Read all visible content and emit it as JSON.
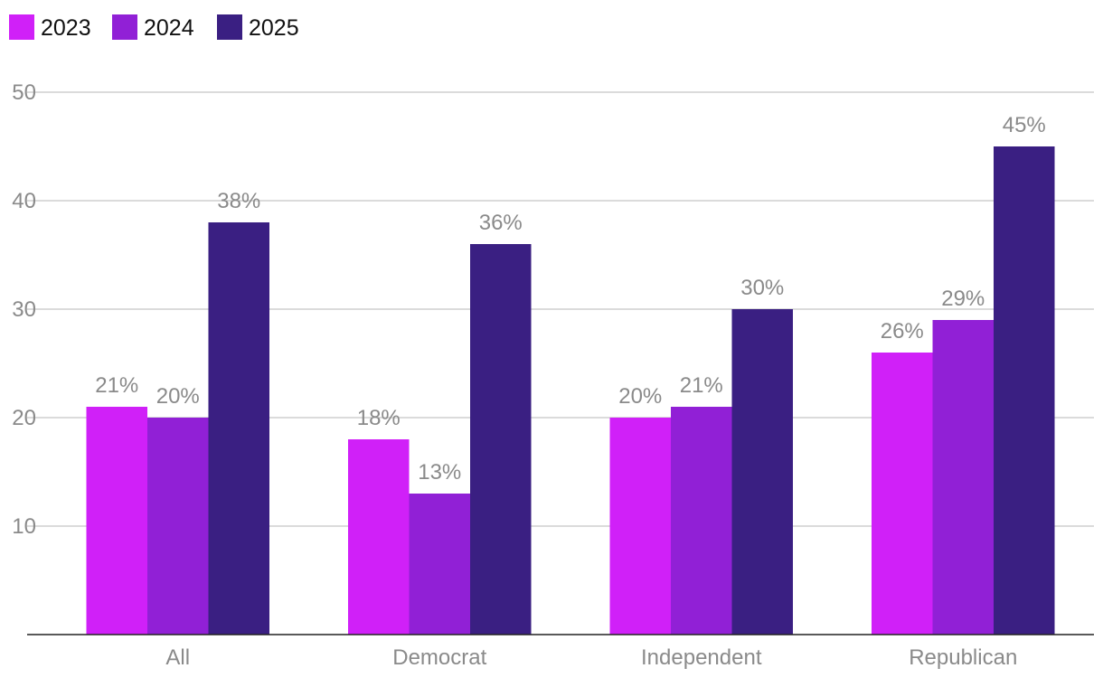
{
  "chart_data": {
    "type": "bar",
    "categories": [
      "All",
      "Democrat",
      "Independent",
      "Republican"
    ],
    "series": [
      {
        "name": "2023",
        "color": "#d020f8",
        "values": [
          21,
          18,
          20,
          26
        ],
        "labels": [
          "21%",
          "18%",
          "20%",
          "26%"
        ]
      },
      {
        "name": "2024",
        "color": "#9120d6",
        "values": [
          20,
          13,
          21,
          29
        ],
        "labels": [
          "20%",
          "13%",
          "21%",
          "29%"
        ]
      },
      {
        "name": "2025",
        "color": "#3a1f82",
        "values": [
          38,
          36,
          30,
          45
        ],
        "labels": [
          "38%",
          "36%",
          "30%",
          "45%"
        ]
      }
    ],
    "yticks": [
      10,
      20,
      30,
      40,
      50
    ],
    "ylim": [
      0,
      50
    ],
    "grid": true,
    "legend": "top-left",
    "title": "",
    "xlabel": "",
    "ylabel": ""
  }
}
